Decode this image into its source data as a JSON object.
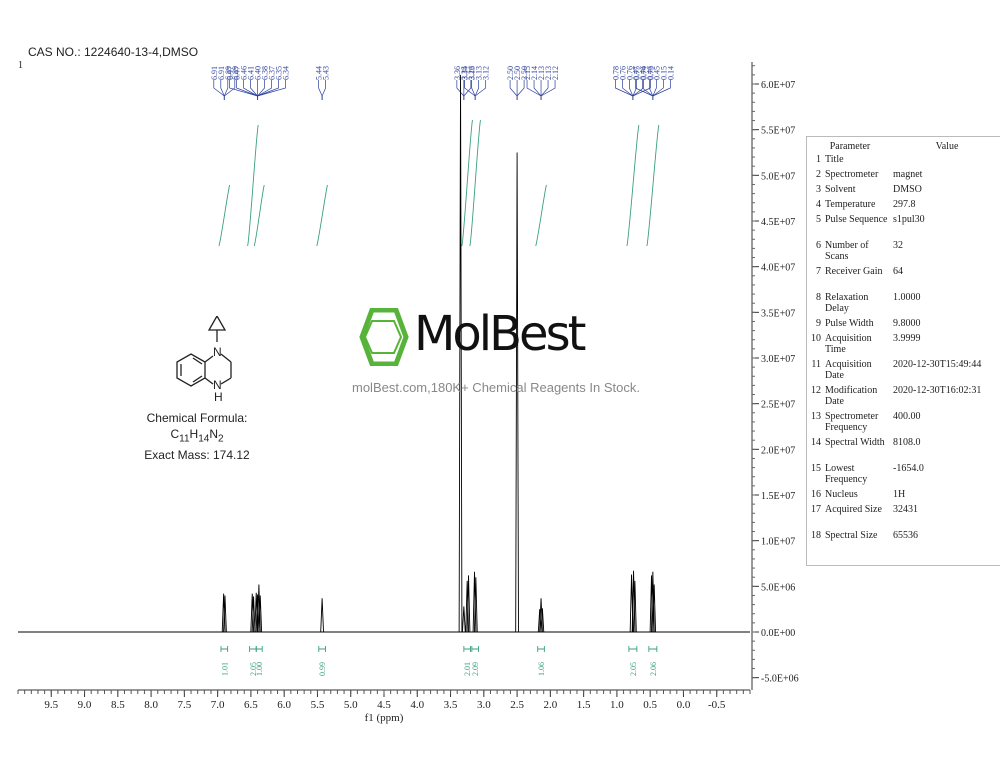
{
  "header": {
    "cas": "CAS NO.: 1224640-13-4,DMSO",
    "index": "1"
  },
  "watermark": {
    "brand": "MolBest",
    "tagline": "molBest.com,180K+ Chemical Reagents In Stock.",
    "color": "#58b33a"
  },
  "compound": {
    "formula_label": "Chemical Formula: C",
    "formula_sub": [
      "11",
      "14",
      "2"
    ],
    "formula_letters": [
      "H",
      "N"
    ],
    "exact_mass": "Exact Mass: 174.12",
    "nh": "H",
    "n": "N"
  },
  "table": {
    "head": {
      "param": "Parameter",
      "value": "Value"
    },
    "rows": [
      {
        "i": "1",
        "name": "Title",
        "value": ""
      },
      {
        "i": "2",
        "name": "Spectrometer",
        "value": "magnet"
      },
      {
        "i": "3",
        "name": "Solvent",
        "value": "DMSO"
      },
      {
        "i": "4",
        "name": "Temperature",
        "value": "297.8"
      },
      {
        "i": "5",
        "name": "Pulse Sequence",
        "value": "s1pul30"
      },
      {
        "i": "6",
        "name": "Number of Scans",
        "value": "32"
      },
      {
        "i": "7",
        "name": "Receiver Gain",
        "value": "64"
      },
      {
        "i": "8",
        "name": "Relaxation Delay",
        "value": "1.0000"
      },
      {
        "i": "9",
        "name": "Pulse Width",
        "value": "9.8000"
      },
      {
        "i": "10",
        "name": "Acquisition Time",
        "value": "3.9999"
      },
      {
        "i": "11",
        "name": "Acquisition Date",
        "value": "2020-12-30T15:49:44"
      },
      {
        "i": "12",
        "name": "Modification Date",
        "value": "2020-12-30T16:02:31"
      },
      {
        "i": "13",
        "name": "Spectrometer Frequency",
        "value": "400.00"
      },
      {
        "i": "14",
        "name": "Spectral Width",
        "value": "8108.0"
      },
      {
        "i": "15",
        "name": "Lowest Frequency",
        "value": "-1654.0"
      },
      {
        "i": "16",
        "name": "Nucleus",
        "value": "1H"
      },
      {
        "i": "17",
        "name": "Acquired Size",
        "value": "32431"
      },
      {
        "i": "18",
        "name": "Spectral Size",
        "value": "65536"
      }
    ]
  },
  "chart_data": {
    "type": "line",
    "xlabel": "f1 (ppm)",
    "xlim": [
      10.0,
      -1.0
    ],
    "ylim": [
      -5000000,
      62000000
    ],
    "x_ticks": [
      "9.5",
      "9.0",
      "8.5",
      "8.0",
      "7.5",
      "7.0",
      "6.5",
      "6.0",
      "5.5",
      "5.0",
      "4.5",
      "4.0",
      "3.5",
      "3.0",
      "2.5",
      "2.0",
      "1.5",
      "1.0",
      "0.5",
      "0.0",
      "-0.5"
    ],
    "y_ticks": [
      "-5.0E+06",
      "0.0E+00",
      "5.0E+06",
      "1.0E+07",
      "1.5E+07",
      "2.0E+07",
      "2.5E+07",
      "3.0E+07",
      "3.5E+07",
      "4.0E+07",
      "4.5E+07",
      "5.0E+07",
      "5.5E+07",
      "6.0E+07"
    ],
    "y_tick_values": [
      -5000000,
      0,
      5000000,
      10000000,
      15000000,
      20000000,
      25000000,
      30000000,
      35000000,
      40000000,
      45000000,
      50000000,
      55000000,
      60000000
    ],
    "peaks": [
      {
        "ppm": 6.91,
        "h": 4200000
      },
      {
        "ppm": 6.89,
        "h": 4000000
      },
      {
        "ppm": 6.48,
        "h": 4200000
      },
      {
        "ppm": 6.46,
        "h": 3900000
      },
      {
        "ppm": 6.42,
        "h": 4300000
      },
      {
        "ppm": 6.4,
        "h": 4100000
      },
      {
        "ppm": 6.38,
        "h": 5200000
      },
      {
        "ppm": 6.36,
        "h": 4000000
      },
      {
        "ppm": 5.43,
        "h": 3700000
      },
      {
        "ppm": 3.35,
        "h": 61000000
      },
      {
        "ppm": 3.3,
        "h": 2800000
      },
      {
        "ppm": 3.25,
        "h": 5600000
      },
      {
        "ppm": 3.23,
        "h": 6200000
      },
      {
        "ppm": 3.14,
        "h": 6600000
      },
      {
        "ppm": 3.12,
        "h": 6000000
      },
      {
        "ppm": 2.5,
        "h": 52500000
      },
      {
        "ppm": 2.16,
        "h": 2500000
      },
      {
        "ppm": 2.14,
        "h": 3700000
      },
      {
        "ppm": 2.12,
        "h": 2600000
      },
      {
        "ppm": 0.78,
        "h": 6300000
      },
      {
        "ppm": 0.75,
        "h": 6700000
      },
      {
        "ppm": 0.73,
        "h": 5600000
      },
      {
        "ppm": 0.48,
        "h": 6200000
      },
      {
        "ppm": 0.46,
        "h": 6600000
      },
      {
        "ppm": 0.44,
        "h": 5200000
      }
    ],
    "peak_labels": [
      {
        "group": "6.91 6.91 6.89 6.89",
        "texts": [
          "6.91",
          "6.91",
          "6.89",
          "6.89"
        ],
        "at": 6.9
      },
      {
        "group": "6.47 ... 6.34",
        "texts": [
          "6.47",
          "6.47",
          "6.46",
          "6.41",
          "6.40",
          "6.38",
          "6.37",
          "6.35",
          "6.34"
        ],
        "at": 6.4
      },
      {
        "group": "5.44",
        "texts": [
          "5.44",
          "5.43"
        ],
        "at": 5.43
      },
      {
        "group": "3.36 3.35",
        "texts": [
          "3.36",
          "3.35",
          "3.26"
        ],
        "at": 3.3
      },
      {
        "group": "3.14 ... 3.12",
        "texts": [
          "3.14",
          "3.13",
          "3.13",
          "3.12"
        ],
        "at": 3.13
      },
      {
        "group": "2.50",
        "texts": [
          "2.50",
          "2.50",
          "2.50"
        ],
        "at": 2.5
      },
      {
        "group": "2.15",
        "texts": [
          "2.15",
          "2.14",
          "2.13",
          "2.13",
          "2.12"
        ],
        "at": 2.14
      },
      {
        "group": "0.78",
        "texts": [
          "0.78",
          "0.76",
          "0.76",
          "0.75",
          "0.74",
          "0.73"
        ],
        "at": 0.76
      },
      {
        "group": "0.47",
        "texts": [
          "0.47",
          "0.46",
          "0.46",
          "0.45",
          "0.15",
          "0.14"
        ],
        "at": 0.46
      }
    ],
    "integrals": [
      {
        "from": 6.95,
        "to": 6.85,
        "value": "1.01"
      },
      {
        "from": 6.52,
        "to": 6.42,
        "value": "2.05"
      },
      {
        "from": 6.42,
        "to": 6.33,
        "value": "1.00"
      },
      {
        "from": 5.48,
        "to": 5.38,
        "value": "0.99"
      },
      {
        "from": 3.3,
        "to": 3.2,
        "value": "2.01"
      },
      {
        "from": 3.18,
        "to": 3.08,
        "value": "2.09"
      },
      {
        "from": 2.19,
        "to": 2.09,
        "value": "1.06"
      },
      {
        "from": 0.82,
        "to": 0.7,
        "value": "2.05"
      },
      {
        "from": 0.52,
        "to": 0.4,
        "value": "2.06"
      }
    ],
    "colors": {
      "line": "#000000",
      "integral": "#3aa07a",
      "peak_label": "#2b3f9a"
    }
  }
}
